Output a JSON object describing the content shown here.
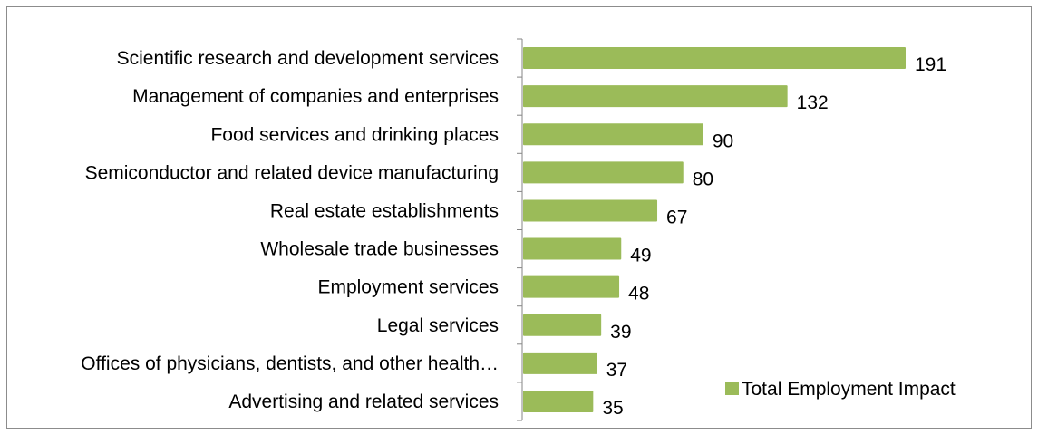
{
  "chart_data": {
    "type": "bar",
    "orientation": "horizontal",
    "categories": [
      "Scientific research and development services",
      "Management of companies and enterprises",
      "Food services and drinking places",
      "Semiconductor and related device manufacturing",
      "Real estate establishments",
      "Wholesale trade businesses",
      "Employment services",
      "Legal services",
      "Offices of physicians, dentists, and other health…",
      "Advertising and related services"
    ],
    "series": [
      {
        "name": "Total Employment Impact",
        "values": [
          191,
          132,
          90,
          80,
          67,
          49,
          48,
          39,
          37,
          35
        ],
        "color": "#9bbb59"
      }
    ],
    "title": "",
    "xlabel": "",
    "ylabel": "",
    "xlim": [
      0,
      200
    ],
    "grid": false,
    "data_labels": true,
    "legend_position": "bottom-right"
  }
}
